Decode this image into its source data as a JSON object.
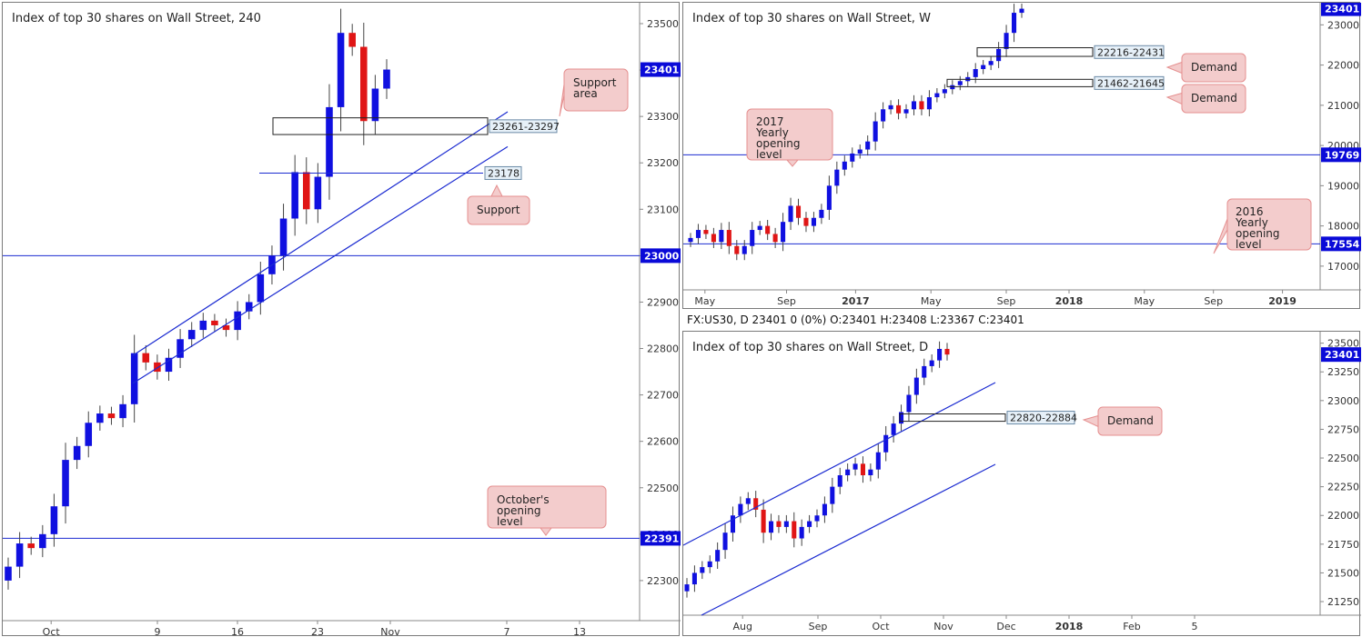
{
  "info_bar": "FX:US30, D  23401 0 (0%) O:23401 H:23408 L:23367 C:23401",
  "colors": {
    "up": "#1010e0",
    "down": "#e01515",
    "line": "#1b2bd1",
    "callout_bg": "#f3cccc",
    "callout_border": "#e58f8f"
  },
  "chart_data": [
    {
      "type": "candlestick",
      "title": "Index of top 30 shares on Wall Street, 240",
      "ylim": [
        22245,
        23545
      ],
      "yticks": [
        22300,
        22400,
        22500,
        22600,
        22700,
        22800,
        22900,
        23000,
        23100,
        23200,
        23300,
        23400,
        23500
      ],
      "x_labels": [
        {
          "t": 0.27,
          "label": "Oct"
        },
        {
          "t": 1.0,
          "label": "9"
        },
        {
          "t": 1.55,
          "label": "16"
        },
        {
          "t": 2.1,
          "label": "23"
        },
        {
          "t": 2.6,
          "label": "Nov"
        },
        {
          "t": 3.4,
          "label": "7"
        },
        {
          "t": 3.9,
          "label": "13"
        }
      ],
      "price_tags": [
        {
          "value": 23401,
          "label": "23401"
        },
        {
          "value": 23000,
          "label": "23000"
        },
        {
          "value": 22391,
          "label": "22391"
        }
      ],
      "hlines": [
        23000,
        22391
      ],
      "zones": [
        {
          "label": "23261-23297",
          "low": 23261,
          "high": 23297
        }
      ],
      "level_labels": [
        {
          "label": "23178",
          "value": 23178
        }
      ],
      "channel": {
        "upper": [
          [
            22785,
            23310
          ]
        ],
        "lower": [
          [
            22725,
            23235
          ]
        ]
      },
      "callouts": [
        "Support area",
        "Support",
        "October's opening level"
      ],
      "closes": [
        22330,
        22380,
        22370,
        22400,
        22460,
        22560,
        22590,
        22640,
        22660,
        22650,
        22680,
        22790,
        22770,
        22750,
        22780,
        22820,
        22840,
        22860,
        22850,
        22840,
        22880,
        22900,
        22960,
        23000,
        23080,
        23180,
        23100,
        23170,
        23320,
        23480,
        23450,
        23290,
        23360,
        23401
      ]
    },
    {
      "type": "candlestick",
      "title": "Index of top 30 shares on Wall Street, W",
      "ylim": [
        16500,
        23550
      ],
      "yticks": [
        17000,
        18000,
        19000,
        20000,
        21000,
        22000,
        23000
      ],
      "x_labels": [
        {
          "t": 0.02,
          "label": "May"
        },
        {
          "t": 0.15,
          "label": "Sep"
        },
        {
          "t": 0.26,
          "label": "2017"
        },
        {
          "t": 0.38,
          "label": "May"
        },
        {
          "t": 0.5,
          "label": "Sep"
        },
        {
          "t": 0.6,
          "label": "2018"
        },
        {
          "t": 0.72,
          "label": "May"
        },
        {
          "t": 0.83,
          "label": "Sep"
        },
        {
          "t": 0.94,
          "label": "2019"
        }
      ],
      "price_tags": [
        {
          "value": 23401,
          "label": "23401"
        },
        {
          "value": 19769,
          "label": "19769"
        },
        {
          "value": 17554,
          "label": "17554"
        }
      ],
      "hlines": [
        19769,
        17554
      ],
      "zones": [
        {
          "label": "22216-22431",
          "low": 22216,
          "high": 22431
        },
        {
          "label": "21462-21645",
          "low": 21462,
          "high": 21645
        }
      ],
      "callouts": [
        "Demand",
        "Demand",
        "2017 Yearly opening level",
        "2016 Yearly opening level"
      ],
      "closes": [
        17700,
        17900,
        17800,
        17600,
        17900,
        17500,
        17300,
        17500,
        17900,
        18000,
        17800,
        17600,
        18100,
        18500,
        18200,
        18000,
        18200,
        18400,
        19000,
        19400,
        19600,
        19800,
        19900,
        20100,
        20600,
        20900,
        21000,
        20800,
        20900,
        21100,
        20900,
        21200,
        21300,
        21400,
        21500,
        21600,
        21700,
        21900,
        22000,
        22100,
        22400,
        22800,
        23300,
        23401
      ]
    },
    {
      "type": "candlestick",
      "title": "Index of top 30 shares on Wall Street, D",
      "ylim": [
        21100,
        23600
      ],
      "yticks": [
        21250,
        21500,
        21750,
        22000,
        22250,
        22500,
        22750,
        23000,
        23250,
        23500
      ],
      "x_labels": [
        {
          "t": 0.08,
          "label": "Aug"
        },
        {
          "t": 0.2,
          "label": "Sep"
        },
        {
          "t": 0.3,
          "label": "Oct"
        },
        {
          "t": 0.4,
          "label": "Nov"
        },
        {
          "t": 0.5,
          "label": "Dec"
        },
        {
          "t": 0.6,
          "label": "2018"
        },
        {
          "t": 0.7,
          "label": "Feb"
        },
        {
          "t": 0.8,
          "label": "5"
        }
      ],
      "price_tags": [
        {
          "value": 23401,
          "label": "23401"
        }
      ],
      "zones": [
        {
          "label": "22820-22884",
          "low": 22820,
          "high": 22884
        }
      ],
      "callouts": [
        "Demand"
      ],
      "closes": [
        21400,
        21500,
        21550,
        21600,
        21700,
        21850,
        22000,
        22100,
        22150,
        22050,
        21850,
        21950,
        21900,
        21950,
        21800,
        21900,
        21950,
        22000,
        22100,
        22250,
        22350,
        22400,
        22450,
        22350,
        22400,
        22550,
        22700,
        22800,
        22900,
        23050,
        23200,
        23300,
        23350,
        23450,
        23401
      ]
    }
  ]
}
